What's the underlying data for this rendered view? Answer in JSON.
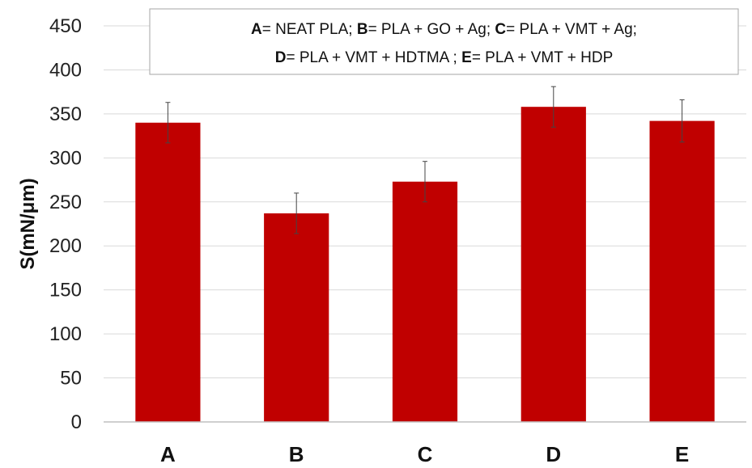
{
  "chart_data": {
    "type": "bar",
    "categories": [
      "A",
      "B",
      "C",
      "D",
      "E"
    ],
    "values": [
      340,
      237,
      273,
      358,
      342
    ],
    "errors": [
      23,
      23,
      23,
      23,
      24
    ],
    "title": "",
    "xlabel": "",
    "ylabel": "S(mN/μm)",
    "ylim": [
      0,
      450
    ],
    "ytick_step": 50,
    "grid": true,
    "bar_color": "#c00000",
    "grid_color": "#d9d9d9",
    "legend_placement": "top-center",
    "legend_lines": [
      [
        {
          "key": "A",
          "text": "= NEAT PLA; "
        },
        {
          "key": "B",
          "text": "= PLA + GO + Ag; "
        },
        {
          "key": "C",
          "text": "= PLA + VMT + Ag;"
        }
      ],
      [
        {
          "key": "D",
          "text": "= PLA + VMT + HDTMA ; "
        },
        {
          "key": "E",
          "text": "= PLA + VMT + HDP"
        }
      ]
    ]
  }
}
